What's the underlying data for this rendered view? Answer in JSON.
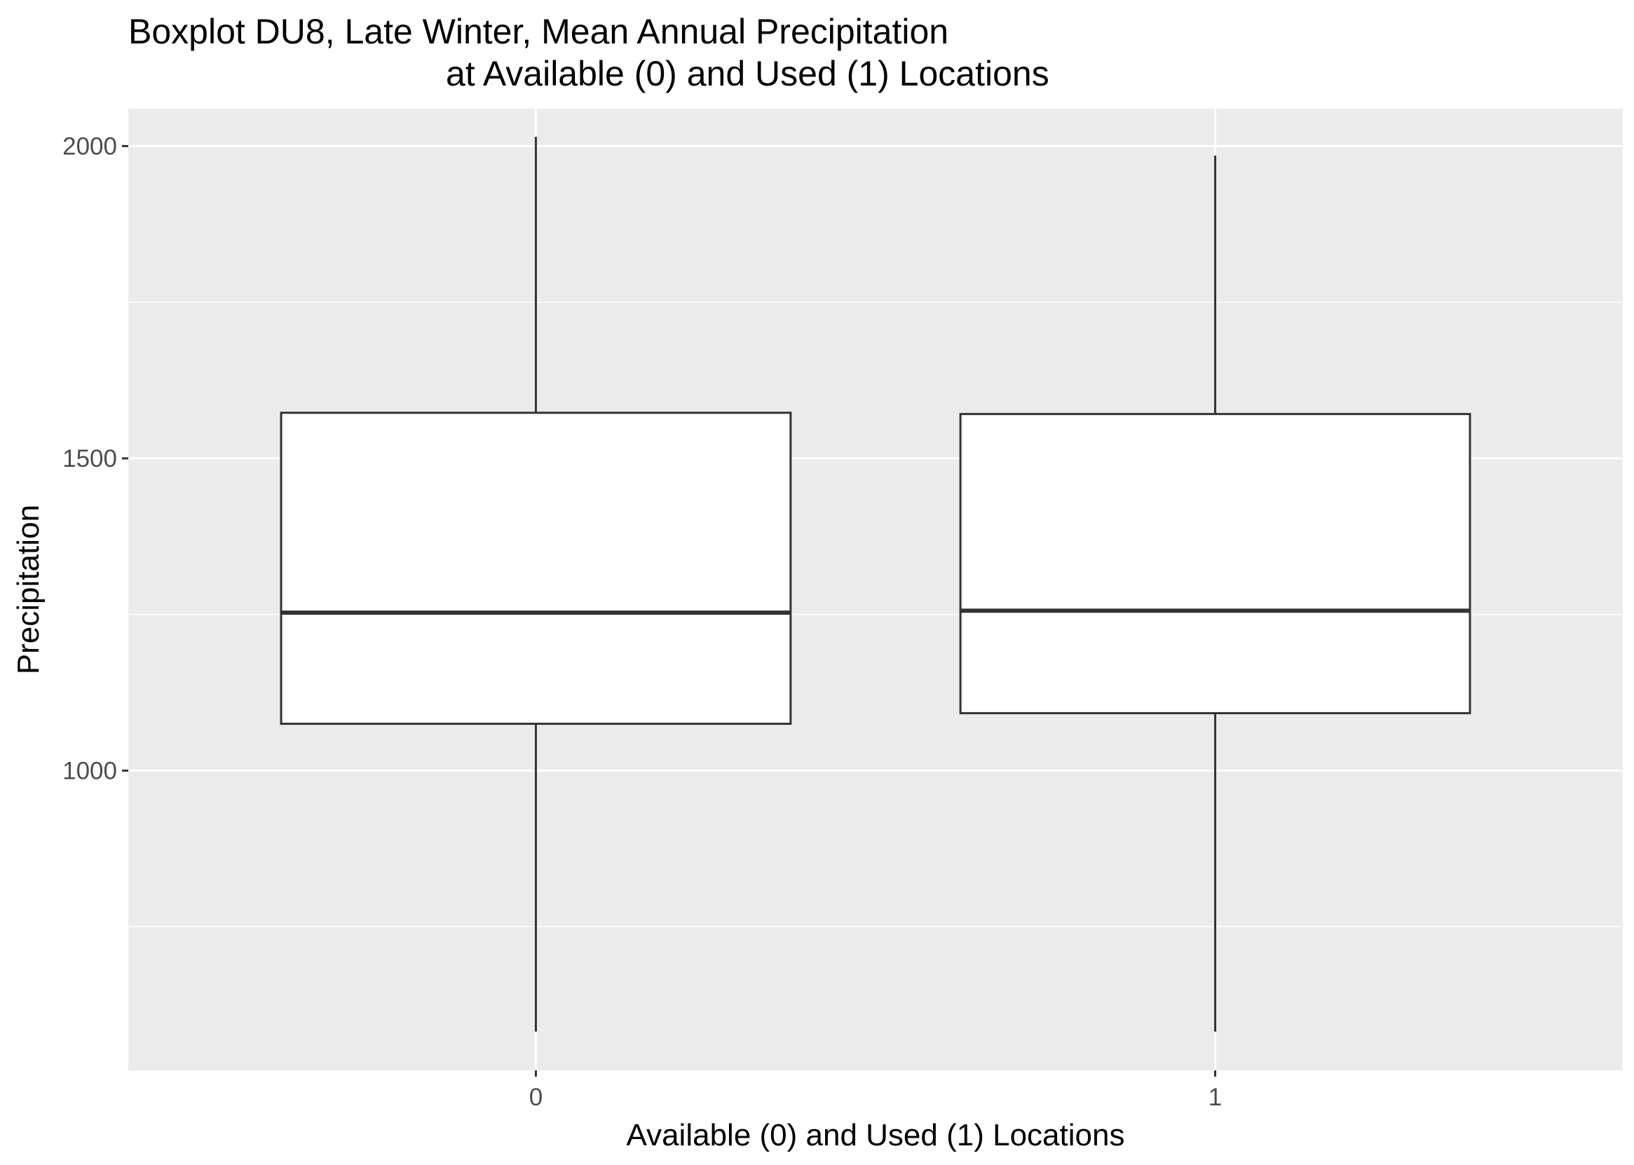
{
  "chart_data": {
    "type": "boxplot",
    "title_lines": [
      "Boxplot DU8, Late Winter, Mean Annual Precipitation",
      "at Available (0) and Used (1) Locations"
    ],
    "xlabel": "Available (0) and Used (1) Locations",
    "ylabel": "Precipitation",
    "categories": [
      "0",
      "1"
    ],
    "ylim": [
      520,
      2060
    ],
    "yticks": [
      1000,
      1500,
      2000
    ],
    "yticks_minor": [
      750,
      1250,
      1750
    ],
    "grid": true,
    "panel_background": "#ebebeb",
    "box_fill": "#ffffff",
    "box_stroke": "#333333",
    "boxes": [
      {
        "category": "0",
        "whisker_low": 582,
        "q1": 1075,
        "median": 1253,
        "q3": 1573,
        "whisker_high": 2015
      },
      {
        "category": "1",
        "whisker_low": 582,
        "q1": 1092,
        "median": 1256,
        "q3": 1571,
        "whisker_high": 1985
      }
    ]
  }
}
